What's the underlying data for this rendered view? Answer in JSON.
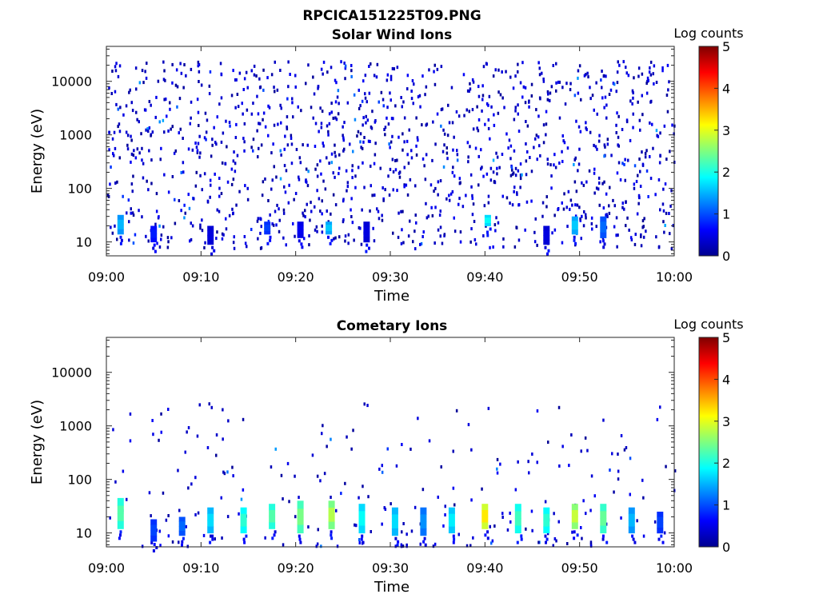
{
  "figure": {
    "title": "RPCICA151225T09.PNG"
  },
  "colorbar": {
    "label": "Log counts",
    "ticks": [
      "0",
      "1",
      "2",
      "3",
      "4",
      "5"
    ],
    "range": [
      0,
      5
    ],
    "colormap": "jet"
  },
  "chart_data": [
    {
      "type": "heatmap",
      "title": "Solar Wind Ions",
      "xlabel": "Time",
      "ylabel": "Energy (eV)",
      "x_ticks": [
        "09:00",
        "09:10",
        "09:20",
        "09:30",
        "09:40",
        "09:50",
        "10:00"
      ],
      "x_range_minutes": [
        0,
        60
      ],
      "y_ticks": [
        "10",
        "100",
        "1000",
        "10000"
      ],
      "y_scale": "log",
      "y_range": [
        5.5,
        45000
      ],
      "colorbar_label": "Log counts",
      "clim": [
        0,
        5
      ],
      "enhancements": [
        {
          "t": 1.5,
          "e_lo": 14,
          "e_hi": 32,
          "value": 1.6
        },
        {
          "t": 5.0,
          "e_lo": 10,
          "e_hi": 20,
          "value": 0.8
        },
        {
          "t": 11.0,
          "e_lo": 9,
          "e_hi": 20,
          "value": 0.5
        },
        {
          "t": 17.0,
          "e_lo": 14,
          "e_hi": 24,
          "value": 1.0
        },
        {
          "t": 20.5,
          "e_lo": 12,
          "e_hi": 24,
          "value": 0.6
        },
        {
          "t": 23.5,
          "e_lo": 14,
          "e_hi": 24,
          "value": 1.7
        },
        {
          "t": 27.5,
          "e_lo": 10,
          "e_hi": 24,
          "value": 0.5
        },
        {
          "t": 40.3,
          "e_lo": 20,
          "e_hi": 32,
          "value": 2.0
        },
        {
          "t": 46.5,
          "e_lo": 9,
          "e_hi": 20,
          "value": 0.5
        },
        {
          "t": 49.5,
          "e_lo": 14,
          "e_hi": 30,
          "value": 1.7
        },
        {
          "t": 52.5,
          "e_lo": 12,
          "e_hi": 30,
          "value": 1.2
        }
      ]
    },
    {
      "type": "heatmap",
      "title": "Cometary Ions",
      "xlabel": "Time",
      "ylabel": "Energy (eV)",
      "x_ticks": [
        "09:00",
        "09:10",
        "09:20",
        "09:30",
        "09:40",
        "09:50",
        "10:00"
      ],
      "x_range_minutes": [
        0,
        60
      ],
      "y_ticks": [
        "10",
        "100",
        "1000",
        "10000"
      ],
      "y_scale": "log",
      "y_range": [
        5.5,
        45000
      ],
      "colorbar_label": "Log counts",
      "clim": [
        0,
        5
      ],
      "enhancements": [
        {
          "t": 1.5,
          "e_lo": 12,
          "e_hi": 45,
          "value": 2.4
        },
        {
          "t": 5.0,
          "e_lo": 7,
          "e_hi": 18,
          "value": 1.0
        },
        {
          "t": 8.0,
          "e_lo": 9,
          "e_hi": 20,
          "value": 1.2
        },
        {
          "t": 11.0,
          "e_lo": 10,
          "e_hi": 30,
          "value": 1.8
        },
        {
          "t": 14.5,
          "e_lo": 10,
          "e_hi": 30,
          "value": 2.2
        },
        {
          "t": 17.5,
          "e_lo": 12,
          "e_hi": 35,
          "value": 2.4
        },
        {
          "t": 20.5,
          "e_lo": 10,
          "e_hi": 40,
          "value": 2.6
        },
        {
          "t": 23.8,
          "e_lo": 12,
          "e_hi": 40,
          "value": 2.9
        },
        {
          "t": 27.0,
          "e_lo": 10,
          "e_hi": 35,
          "value": 2.0
        },
        {
          "t": 30.5,
          "e_lo": 9,
          "e_hi": 30,
          "value": 1.8
        },
        {
          "t": 33.5,
          "e_lo": 9,
          "e_hi": 30,
          "value": 1.4
        },
        {
          "t": 36.5,
          "e_lo": 10,
          "e_hi": 30,
          "value": 1.9
        },
        {
          "t": 40.0,
          "e_lo": 12,
          "e_hi": 35,
          "value": 3.4
        },
        {
          "t": 43.5,
          "e_lo": 10,
          "e_hi": 35,
          "value": 2.3
        },
        {
          "t": 46.5,
          "e_lo": 10,
          "e_hi": 30,
          "value": 2.2
        },
        {
          "t": 49.5,
          "e_lo": 12,
          "e_hi": 35,
          "value": 3.0
        },
        {
          "t": 52.5,
          "e_lo": 10,
          "e_hi": 35,
          "value": 2.5
        },
        {
          "t": 55.5,
          "e_lo": 10,
          "e_hi": 30,
          "value": 1.6
        },
        {
          "t": 58.5,
          "e_lo": 10,
          "e_hi": 25,
          "value": 1.0
        }
      ]
    }
  ]
}
